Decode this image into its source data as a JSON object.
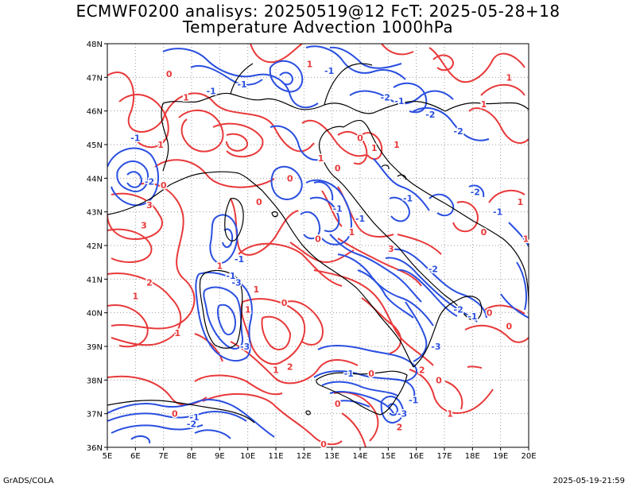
{
  "header": {
    "line1": "ECMWF0200 analisys: 20250519@12 FcT: 2025-05-28+18",
    "line2": "Temperature Advection 1000hPa"
  },
  "footer": {
    "credit": "GrADS/COLA",
    "timestamp": "2025-05-19-21:59"
  },
  "map": {
    "lat_labels": [
      "48N",
      "47N",
      "46N",
      "45N",
      "44N",
      "43N",
      "42N",
      "41N",
      "40N",
      "39N",
      "38N",
      "37N",
      "36N"
    ],
    "lon_labels": [
      "5E",
      "6E",
      "7E",
      "8E",
      "9E",
      "10E",
      "11E",
      "12E",
      "13E",
      "14E",
      "15E",
      "16E",
      "17E",
      "18E",
      "19E",
      "20E"
    ],
    "lat_range": [
      36,
      48
    ],
    "lon_range": [
      5,
      20
    ],
    "grid": "dotted",
    "colors": {
      "warm": "#e8393a",
      "cold": "#2a4fe0",
      "coast": "#000000",
      "grid": "#9a9a9a"
    },
    "contour_labels": [
      {
        "text": "-1",
        "color": "cold",
        "lon": 6.0,
        "lat": 45.2
      },
      {
        "text": "-2",
        "color": "cold",
        "lon": 6.5,
        "lat": 43.9
      },
      {
        "text": "1",
        "color": "warm",
        "lon": 6.9,
        "lat": 45.0
      },
      {
        "text": "0",
        "color": "warm",
        "lon": 7.0,
        "lat": 43.8
      },
      {
        "text": "3",
        "color": "warm",
        "lon": 6.5,
        "lat": 43.2
      },
      {
        "text": "3",
        "color": "warm",
        "lon": 6.3,
        "lat": 42.6
      },
      {
        "text": "1",
        "color": "warm",
        "lon": 7.8,
        "lat": 46.4
      },
      {
        "text": "-1",
        "color": "cold",
        "lon": 8.7,
        "lat": 46.6
      },
      {
        "text": "0",
        "color": "warm",
        "lon": 7.2,
        "lat": 47.1
      },
      {
        "text": "-1",
        "color": "cold",
        "lon": 9.8,
        "lat": 46.8
      },
      {
        "text": "1",
        "color": "warm",
        "lon": 12.2,
        "lat": 47.4
      },
      {
        "text": "-1",
        "color": "cold",
        "lon": 12.9,
        "lat": 47.2
      },
      {
        "text": "-2",
        "color": "cold",
        "lon": 14.9,
        "lat": 46.4
      },
      {
        "text": "-1",
        "color": "cold",
        "lon": 15.4,
        "lat": 46.3
      },
      {
        "text": "-2",
        "color": "cold",
        "lon": 16.5,
        "lat": 45.9
      },
      {
        "text": "-2",
        "color": "cold",
        "lon": 17.5,
        "lat": 45.4
      },
      {
        "text": "1",
        "color": "warm",
        "lon": 18.4,
        "lat": 46.2
      },
      {
        "text": "1",
        "color": "warm",
        "lon": 19.3,
        "lat": 47.0
      },
      {
        "text": "0",
        "color": "warm",
        "lon": 14.0,
        "lat": 45.2
      },
      {
        "text": "1",
        "color": "warm",
        "lon": 14.5,
        "lat": 44.9
      },
      {
        "text": "1",
        "color": "warm",
        "lon": 15.3,
        "lat": 45.0
      },
      {
        "text": "0",
        "color": "warm",
        "lon": 13.2,
        "lat": 44.3
      },
      {
        "text": "1",
        "color": "warm",
        "lon": 12.6,
        "lat": 44.6
      },
      {
        "text": "0",
        "color": "warm",
        "lon": 11.5,
        "lat": 44.0
      },
      {
        "text": "-1",
        "color": "cold",
        "lon": 15.7,
        "lat": 43.4
      },
      {
        "text": "-2",
        "color": "cold",
        "lon": 18.1,
        "lat": 43.6
      },
      {
        "text": "-1",
        "color": "cold",
        "lon": 18.9,
        "lat": 43.0
      },
      {
        "text": "1",
        "color": "warm",
        "lon": 19.7,
        "lat": 43.3
      },
      {
        "text": "1",
        "color": "warm",
        "lon": 19.9,
        "lat": 42.2
      },
      {
        "text": "0",
        "color": "warm",
        "lon": 18.4,
        "lat": 42.4
      },
      {
        "text": "-1",
        "color": "cold",
        "lon": 13.2,
        "lat": 43.1
      },
      {
        "text": "-1",
        "color": "cold",
        "lon": 14.0,
        "lat": 42.8
      },
      {
        "text": "1",
        "color": "warm",
        "lon": 13.7,
        "lat": 42.4
      },
      {
        "text": "0",
        "color": "warm",
        "lon": 12.5,
        "lat": 42.2
      },
      {
        "text": "0",
        "color": "warm",
        "lon": 10.4,
        "lat": 43.3
      },
      {
        "text": "-1",
        "color": "cold",
        "lon": 9.7,
        "lat": 41.6
      },
      {
        "text": "-1",
        "color": "cold",
        "lon": 9.4,
        "lat": 41.1
      },
      {
        "text": "1",
        "color": "warm",
        "lon": 9.0,
        "lat": 41.4
      },
      {
        "text": "1",
        "color": "warm",
        "lon": 10.3,
        "lat": 40.7
      },
      {
        "text": "0",
        "color": "warm",
        "lon": 11.3,
        "lat": 40.3
      },
      {
        "text": "-3",
        "color": "cold",
        "lon": 9.6,
        "lat": 40.9
      },
      {
        "text": "-3",
        "color": "cold",
        "lon": 9.9,
        "lat": 39.0
      },
      {
        "text": "1",
        "color": "warm",
        "lon": 10.0,
        "lat": 40.1
      },
      {
        "text": "2",
        "color": "warm",
        "lon": 6.5,
        "lat": 40.9
      },
      {
        "text": "1",
        "color": "warm",
        "lon": 6.0,
        "lat": 40.5
      },
      {
        "text": "1",
        "color": "warm",
        "lon": 7.5,
        "lat": 39.4
      },
      {
        "text": "2",
        "color": "warm",
        "lon": 11.5,
        "lat": 38.4
      },
      {
        "text": "1",
        "color": "warm",
        "lon": 11.0,
        "lat": 38.3
      },
      {
        "text": "3",
        "color": "warm",
        "lon": 15.1,
        "lat": 41.9
      },
      {
        "text": "-2",
        "color": "cold",
        "lon": 16.6,
        "lat": 41.3
      },
      {
        "text": "-2",
        "color": "cold",
        "lon": 17.5,
        "lat": 40.1
      },
      {
        "text": "-1",
        "color": "cold",
        "lon": 18.0,
        "lat": 39.9
      },
      {
        "text": "0",
        "color": "warm",
        "lon": 18.6,
        "lat": 40.0
      },
      {
        "text": "0",
        "color": "warm",
        "lon": 19.3,
        "lat": 39.6
      },
      {
        "text": "-3",
        "color": "cold",
        "lon": 16.7,
        "lat": 39.0
      },
      {
        "text": "-1",
        "color": "cold",
        "lon": 13.6,
        "lat": 38.2
      },
      {
        "text": "0",
        "color": "warm",
        "lon": 14.4,
        "lat": 38.2
      },
      {
        "text": "2",
        "color": "warm",
        "lon": 16.2,
        "lat": 38.3
      },
      {
        "text": "0",
        "color": "warm",
        "lon": 16.8,
        "lat": 38.0
      },
      {
        "text": "-1",
        "color": "cold",
        "lon": 15.9,
        "lat": 37.4
      },
      {
        "text": "-3",
        "color": "cold",
        "lon": 15.5,
        "lat": 37.0
      },
      {
        "text": "2",
        "color": "warm",
        "lon": 15.4,
        "lat": 36.6
      },
      {
        "text": "0",
        "color": "warm",
        "lon": 13.2,
        "lat": 37.3
      },
      {
        "text": "1",
        "color": "warm",
        "lon": 17.2,
        "lat": 37.0
      },
      {
        "text": "0",
        "color": "warm",
        "lon": 7.4,
        "lat": 37.0
      },
      {
        "text": "-1",
        "color": "cold",
        "lon": 8.1,
        "lat": 36.9
      },
      {
        "text": "-2",
        "color": "cold",
        "lon": 8.0,
        "lat": 36.7
      },
      {
        "text": "0",
        "color": "warm",
        "lon": 12.7,
        "lat": 36.1
      }
    ]
  }
}
